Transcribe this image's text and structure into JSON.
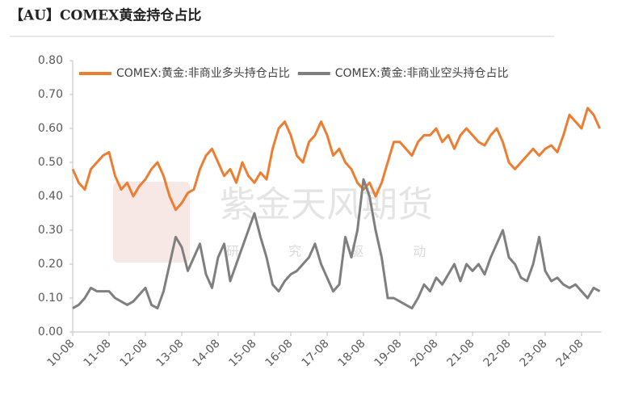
{
  "header": {
    "title": "【AU】COMEX黄金持仓占比"
  },
  "watermark": {
    "brand": "紫金天风期货",
    "slogan": "研 究 驱 动"
  },
  "chart_data": {
    "type": "line",
    "categories": [
      "10-08",
      null,
      null,
      null,
      null,
      null,
      "11-08",
      null,
      null,
      null,
      null,
      null,
      "12-08",
      null,
      null,
      null,
      null,
      null,
      "13-08",
      null,
      null,
      null,
      null,
      null,
      "14-08",
      null,
      null,
      null,
      null,
      null,
      "15-08",
      null,
      null,
      null,
      null,
      null,
      "16-08",
      null,
      null,
      null,
      null,
      null,
      "17-08",
      null,
      null,
      null,
      null,
      null,
      "18-08",
      null,
      null,
      null,
      null,
      null,
      "19-08",
      null,
      null,
      null,
      null,
      null,
      "20-08",
      null,
      null,
      null,
      null,
      null,
      "21-08",
      null,
      null,
      null,
      null,
      null,
      "22-08",
      null,
      null,
      null,
      null,
      null,
      "23-08",
      null,
      null,
      null,
      null,
      null,
      "24-08",
      null,
      null,
      null
    ],
    "series": [
      {
        "name": "COMEX:黄金:非商业多头持仓占比",
        "color": "#ed7d31",
        "values": [
          0.48,
          0.44,
          0.42,
          0.48,
          0.5,
          0.52,
          0.53,
          0.46,
          0.42,
          0.44,
          0.4,
          0.43,
          0.45,
          0.48,
          0.5,
          0.46,
          0.4,
          0.36,
          0.38,
          0.41,
          0.42,
          0.48,
          0.52,
          0.54,
          0.5,
          0.46,
          0.48,
          0.44,
          0.5,
          0.46,
          0.44,
          0.47,
          0.45,
          0.54,
          0.6,
          0.62,
          0.58,
          0.52,
          0.5,
          0.56,
          0.58,
          0.62,
          0.58,
          0.52,
          0.54,
          0.5,
          0.48,
          0.44,
          0.42,
          0.44,
          0.4,
          0.44,
          0.5,
          0.56,
          0.56,
          0.54,
          0.52,
          0.56,
          0.58,
          0.58,
          0.6,
          0.56,
          0.58,
          0.54,
          0.58,
          0.6,
          0.58,
          0.56,
          0.55,
          0.58,
          0.6,
          0.56,
          0.5,
          0.48,
          0.5,
          0.52,
          0.54,
          0.52,
          0.54,
          0.55,
          0.53,
          0.58,
          0.64,
          0.62,
          0.6,
          0.66,
          0.64,
          0.6
        ]
      },
      {
        "name": "COMEX:黄金:非商业空头持仓占比",
        "color": "#7f7f7f",
        "values": [
          0.07,
          0.08,
          0.1,
          0.13,
          0.12,
          0.12,
          0.12,
          0.1,
          0.09,
          0.08,
          0.09,
          0.11,
          0.13,
          0.08,
          0.07,
          0.12,
          0.2,
          0.28,
          0.25,
          0.18,
          0.22,
          0.26,
          0.17,
          0.13,
          0.22,
          0.26,
          0.15,
          0.2,
          0.25,
          0.3,
          0.35,
          0.28,
          0.22,
          0.14,
          0.12,
          0.15,
          0.17,
          0.18,
          0.2,
          0.22,
          0.26,
          0.2,
          0.16,
          0.12,
          0.14,
          0.28,
          0.22,
          0.3,
          0.45,
          0.4,
          0.3,
          0.22,
          0.1,
          0.1,
          0.09,
          0.08,
          0.07,
          0.1,
          0.14,
          0.12,
          0.16,
          0.14,
          0.17,
          0.2,
          0.15,
          0.2,
          0.18,
          0.2,
          0.17,
          0.22,
          0.26,
          0.3,
          0.22,
          0.2,
          0.16,
          0.15,
          0.2,
          0.28,
          0.18,
          0.15,
          0.16,
          0.14,
          0.13,
          0.14,
          0.12,
          0.1,
          0.13,
          0.12
        ]
      }
    ],
    "ylim": [
      0,
      0.8
    ],
    "yticks": [
      {
        "value": 0,
        "label": "0.00"
      },
      {
        "value": 0.1,
        "label": "0.10"
      },
      {
        "value": 0.2,
        "label": "0.20"
      },
      {
        "value": 0.3,
        "label": "0.30"
      },
      {
        "value": 0.4,
        "label": "0.40"
      },
      {
        "value": 0.5,
        "label": "0.50"
      },
      {
        "value": 0.6,
        "label": "0.60"
      },
      {
        "value": 0.7,
        "label": "0.70"
      },
      {
        "value": 0.8,
        "label": "0.80"
      }
    ],
    "grid": false,
    "legend": "top"
  }
}
